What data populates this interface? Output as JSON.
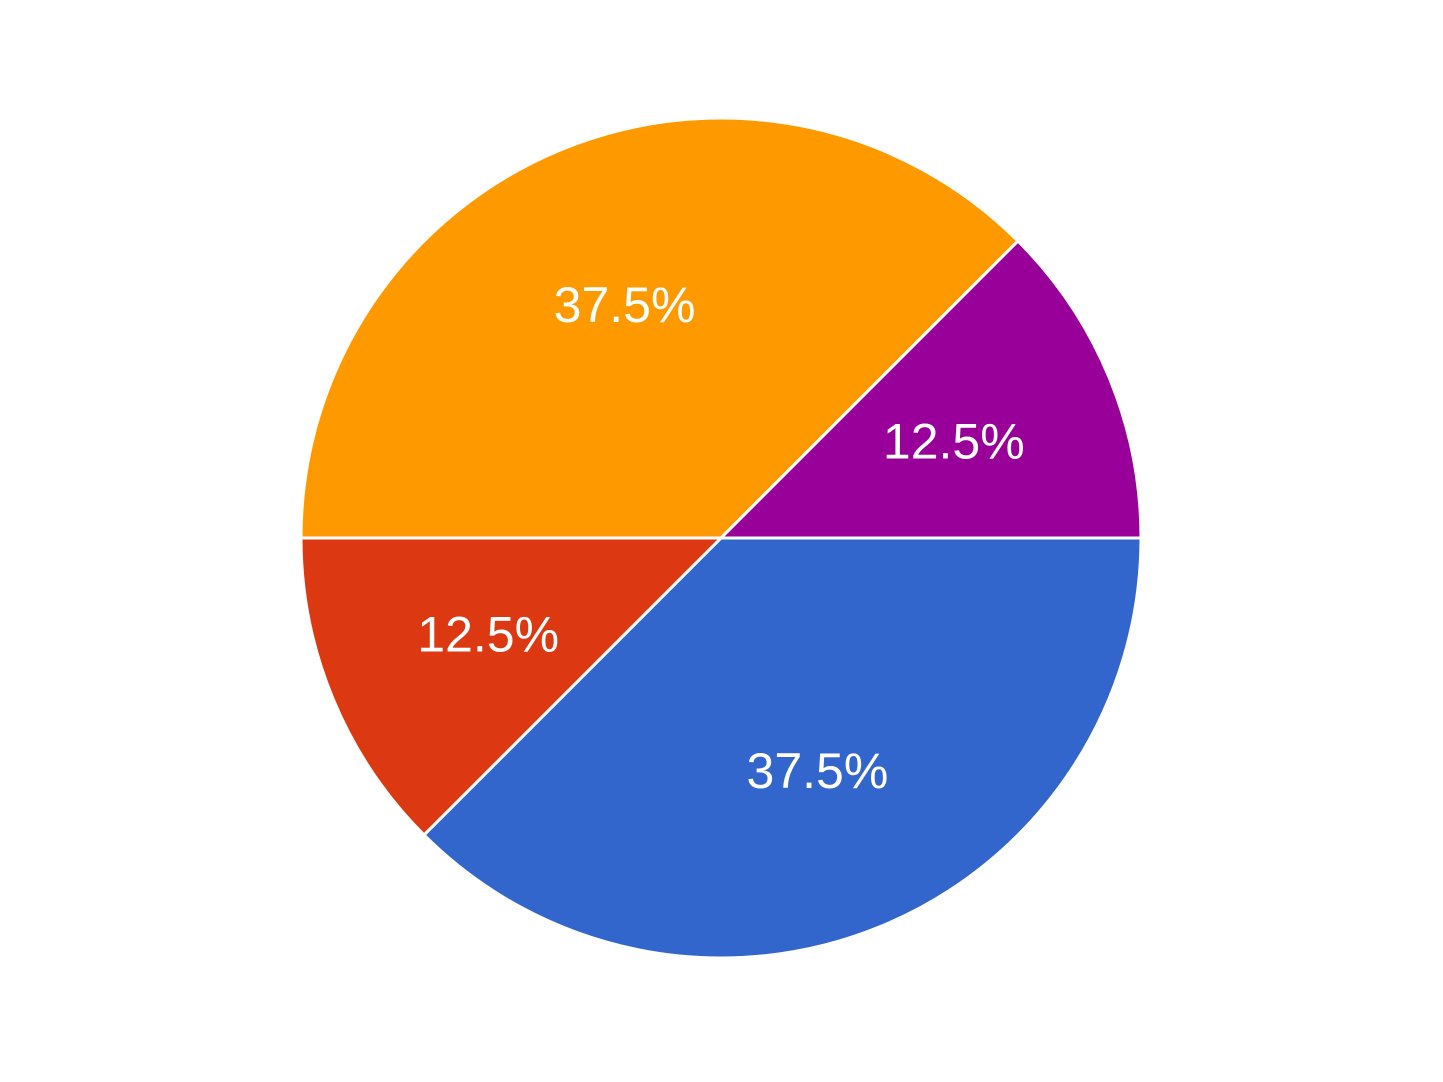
{
  "chart_data": {
    "type": "pie",
    "title": "",
    "slices": [
      {
        "value": 37.5,
        "label": "37.5%",
        "color": "#3366cc"
      },
      {
        "value": 12.5,
        "label": "12.5%",
        "color": "#dc3912"
      },
      {
        "value": 37.5,
        "label": "37.5%",
        "color": "#ff9900"
      },
      {
        "value": 12.5,
        "label": "12.5%",
        "color": "#990099"
      }
    ],
    "legend": "none"
  }
}
